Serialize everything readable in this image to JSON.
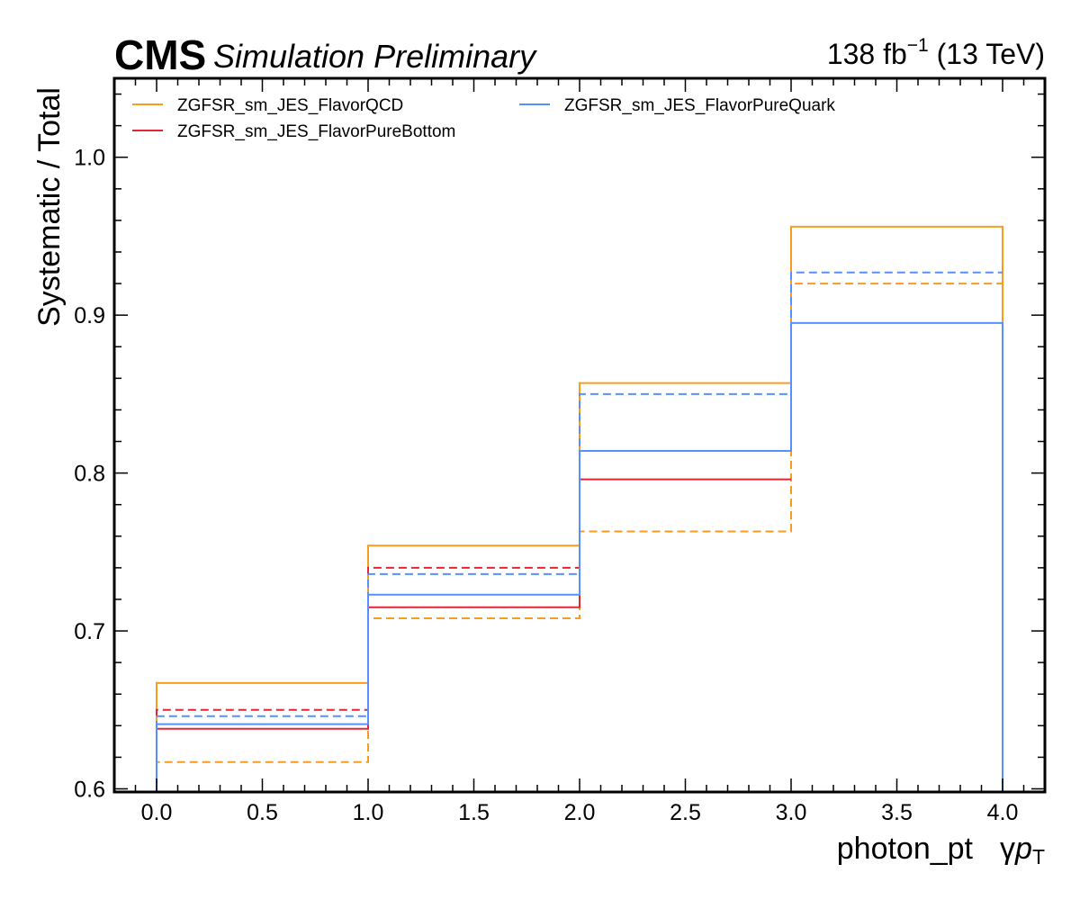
{
  "header": {
    "experiment": "CMS",
    "extra_text": "Simulation Preliminary",
    "lumi_value": "138 fb",
    "lumi_exponent": "−1",
    "lumi_energy": " (13 TeV)"
  },
  "chart_data": {
    "type": "line",
    "drawstyle": "steps",
    "xlabel_main": "photon_pt",
    "xlabel_symbol": "γ",
    "xlabel_italic": "p",
    "xlabel_sub": "T",
    "ylabel": "Systematic / Total",
    "xlim": [
      -0.2,
      4.2
    ],
    "ylim": [
      0.598,
      1.05
    ],
    "xticks": [
      0.0,
      0.5,
      1.0,
      1.5,
      2.0,
      2.5,
      3.0,
      3.5,
      4.0
    ],
    "xtick_labels": [
      "0.0",
      "0.5",
      "1.0",
      "1.5",
      "2.0",
      "2.5",
      "3.0",
      "3.5",
      "4.0"
    ],
    "yticks": [
      0.6,
      0.7,
      0.8,
      0.9,
      1.0
    ],
    "ytick_labels": [
      "0.6",
      "0.7",
      "0.8",
      "0.9",
      "1.0"
    ],
    "grid": false,
    "legend_position": "top-left",
    "bin_edges": [
      0,
      1,
      2,
      3,
      4
    ],
    "series": [
      {
        "name": "ZGFSR_sm_JES_FlavorQCD",
        "color": "#f89c20",
        "style": "solid",
        "in_legend": true,
        "values": [
          0.667,
          0.754,
          0.857,
          0.956
        ]
      },
      {
        "name": "",
        "color": "#f89c20",
        "style": "dashed",
        "in_legend": false,
        "values": [
          0.617,
          0.708,
          0.763,
          0.92
        ]
      },
      {
        "name": "ZGFSR_sm_JES_FlavorPureBottom",
        "color": "#e42536",
        "style": "solid",
        "in_legend": true,
        "values": [
          0.638,
          0.715,
          0.796,
          null
        ]
      },
      {
        "name": "",
        "color": "#e42536",
        "style": "dashed",
        "in_legend": false,
        "values": [
          0.65,
          0.74,
          null,
          null
        ]
      },
      {
        "name": "ZGFSR_sm_JES_FlavorPureQuark",
        "color": "#5790fc",
        "style": "solid",
        "in_legend": true,
        "values": [
          0.641,
          0.723,
          0.814,
          0.895
        ]
      },
      {
        "name": "",
        "color": "#5790fc",
        "style": "dashed",
        "in_legend": false,
        "values": [
          0.646,
          0.736,
          0.85,
          0.927
        ]
      }
    ]
  }
}
